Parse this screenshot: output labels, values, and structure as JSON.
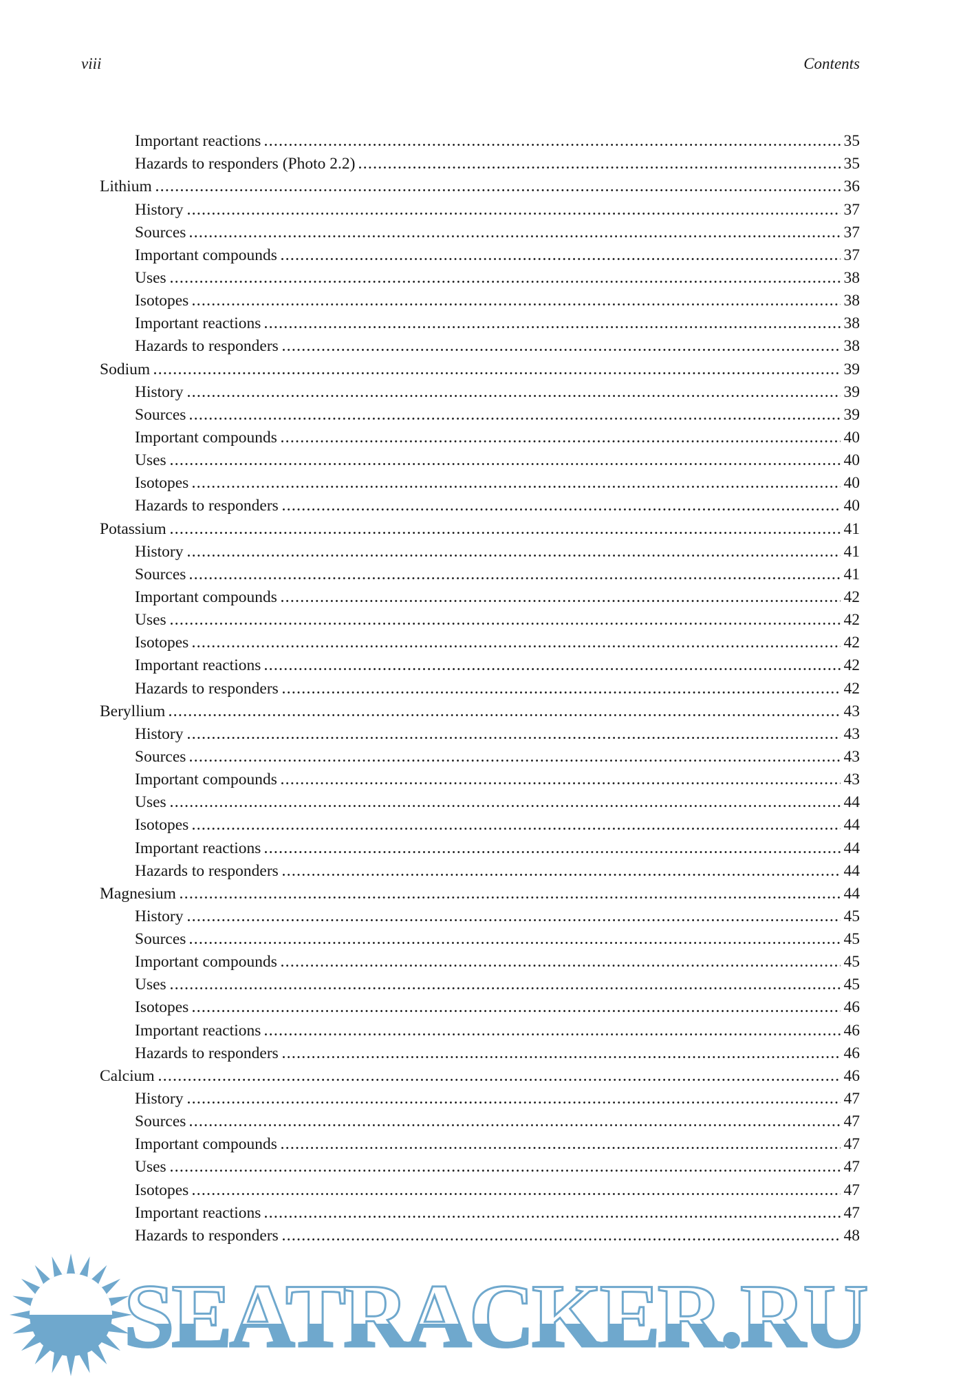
{
  "page": {
    "number": "viii",
    "header_title": "Contents"
  },
  "toc": {
    "entries": [
      {
        "label": "Important reactions",
        "page": "35",
        "level": 1
      },
      {
        "label": "Hazards to responders (Photo 2.2)",
        "page": "35",
        "level": 1
      },
      {
        "label": "Lithium",
        "page": "36",
        "level": 0
      },
      {
        "label": "History",
        "page": "37",
        "level": 1
      },
      {
        "label": "Sources",
        "page": "37",
        "level": 1
      },
      {
        "label": "Important compounds",
        "page": "37",
        "level": 1
      },
      {
        "label": "Uses",
        "page": "38",
        "level": 1
      },
      {
        "label": "Isotopes",
        "page": "38",
        "level": 1
      },
      {
        "label": "Important reactions",
        "page": "38",
        "level": 1
      },
      {
        "label": "Hazards to responders",
        "page": "38",
        "level": 1
      },
      {
        "label": "Sodium",
        "page": "39",
        "level": 0
      },
      {
        "label": "History",
        "page": "39",
        "level": 1
      },
      {
        "label": "Sources",
        "page": "39",
        "level": 1
      },
      {
        "label": "Important compounds",
        "page": "40",
        "level": 1
      },
      {
        "label": "Uses",
        "page": "40",
        "level": 1
      },
      {
        "label": "Isotopes",
        "page": "40",
        "level": 1
      },
      {
        "label": "Hazards to responders",
        "page": "40",
        "level": 1
      },
      {
        "label": "Potassium",
        "page": "41",
        "level": 0
      },
      {
        "label": "History",
        "page": "41",
        "level": 1
      },
      {
        "label": "Sources",
        "page": "41",
        "level": 1
      },
      {
        "label": "Important compounds",
        "page": "42",
        "level": 1
      },
      {
        "label": "Uses",
        "page": "42",
        "level": 1
      },
      {
        "label": "Isotopes",
        "page": "42",
        "level": 1
      },
      {
        "label": "Important reactions",
        "page": "42",
        "level": 1
      },
      {
        "label": "Hazards to responders",
        "page": "42",
        "level": 1
      },
      {
        "label": "Beryllium",
        "page": "43",
        "level": 0
      },
      {
        "label": "History",
        "page": "43",
        "level": 1
      },
      {
        "label": "Sources",
        "page": "43",
        "level": 1
      },
      {
        "label": "Important compounds",
        "page": "43",
        "level": 1
      },
      {
        "label": "Uses",
        "page": "44",
        "level": 1
      },
      {
        "label": "Isotopes",
        "page": "44",
        "level": 1
      },
      {
        "label": "Important reactions",
        "page": "44",
        "level": 1
      },
      {
        "label": "Hazards to responders",
        "page": "44",
        "level": 1
      },
      {
        "label": "Magnesium",
        "page": "44",
        "level": 0
      },
      {
        "label": "History",
        "page": "45",
        "level": 1
      },
      {
        "label": "Sources",
        "page": "45",
        "level": 1
      },
      {
        "label": "Important compounds",
        "page": "45",
        "level": 1
      },
      {
        "label": "Uses",
        "page": "45",
        "level": 1
      },
      {
        "label": "Isotopes",
        "page": "46",
        "level": 1
      },
      {
        "label": "Important reactions",
        "page": "46",
        "level": 1
      },
      {
        "label": "Hazards to responders",
        "page": "46",
        "level": 1
      },
      {
        "label": "Calcium",
        "page": "46",
        "level": 0
      },
      {
        "label": "History",
        "page": "47",
        "level": 1
      },
      {
        "label": "Sources",
        "page": "47",
        "level": 1
      },
      {
        "label": "Important compounds",
        "page": "47",
        "level": 1
      },
      {
        "label": "Uses",
        "page": "47",
        "level": 1
      },
      {
        "label": "Isotopes",
        "page": "47",
        "level": 1
      },
      {
        "label": "Important reactions",
        "page": "47",
        "level": 1
      },
      {
        "label": "Hazards to responders",
        "page": "48",
        "level": 1
      }
    ]
  },
  "watermark": {
    "text": "SEATRACKER.RU",
    "icon": "sun-logo",
    "color": "#6fa8cd"
  },
  "colors": {
    "text": "#161616",
    "background": "#ffffff",
    "watermark_blue": "#6fa8cd"
  }
}
